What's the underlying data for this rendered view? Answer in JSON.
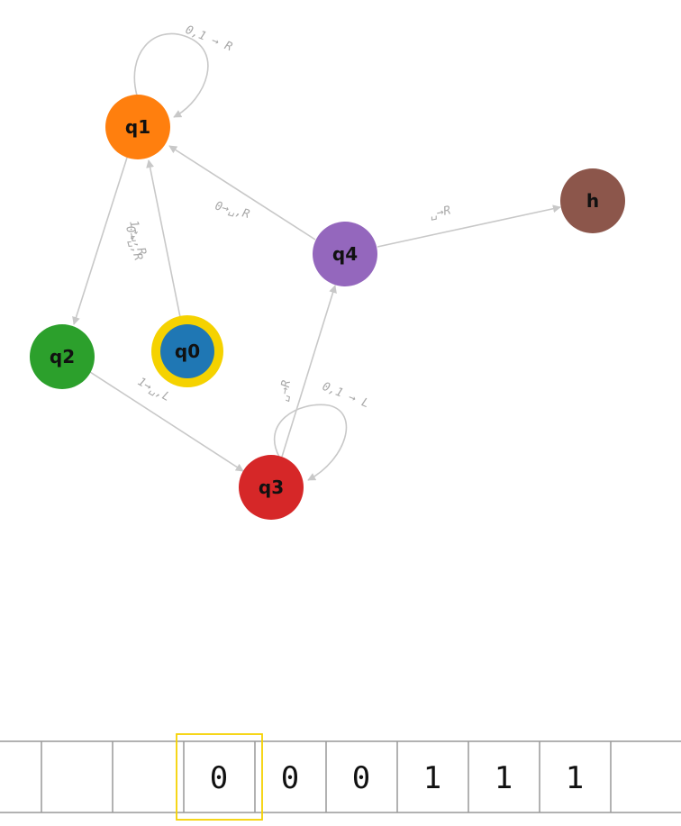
{
  "states": [
    {
      "id": "q1",
      "label": "q1",
      "color": "#ff7f0e"
    },
    {
      "id": "q0",
      "label": "q0",
      "color": "#1f77b4",
      "ring_color": "#f5d200",
      "current": true
    },
    {
      "id": "q2",
      "label": "q2",
      "color": "#2ca02c"
    },
    {
      "id": "q3",
      "label": "q3",
      "color": "#d62728"
    },
    {
      "id": "q4",
      "label": "q4",
      "color": "#9467bd"
    },
    {
      "id": "h",
      "label": "h",
      "color": "#8c564b"
    }
  ],
  "transitions": [
    {
      "id": "q1-q1",
      "from": "q1",
      "to": "q1",
      "label": "0,1 → R"
    },
    {
      "id": "q0-q1",
      "from": "q0",
      "to": "q1",
      "label": "1→␣,R"
    },
    {
      "id": "q0-q1-b",
      "from": "q0",
      "to": "q1",
      "label": "0→␣,R"
    },
    {
      "id": "q1-q2",
      "from": "q1",
      "to": "q2",
      "label": ""
    },
    {
      "id": "q4-q1",
      "from": "q4",
      "to": "q1",
      "label": "0→␣,R"
    },
    {
      "id": "q4-h",
      "from": "q4",
      "to": "h",
      "label": "␣→R"
    },
    {
      "id": "q2-q3",
      "from": "q2",
      "to": "q3",
      "label": "1→␣,L"
    },
    {
      "id": "q3-q4",
      "from": "q3",
      "to": "q4",
      "label": "␣→R"
    },
    {
      "id": "q3-q3",
      "from": "q3",
      "to": "q3",
      "label": "0,1 → L"
    }
  ],
  "tape": {
    "cells": [
      "",
      "",
      "",
      "0",
      "0",
      "0",
      "1",
      "1",
      "1",
      ""
    ],
    "head_index": 3,
    "head_color": "#f5d200"
  }
}
